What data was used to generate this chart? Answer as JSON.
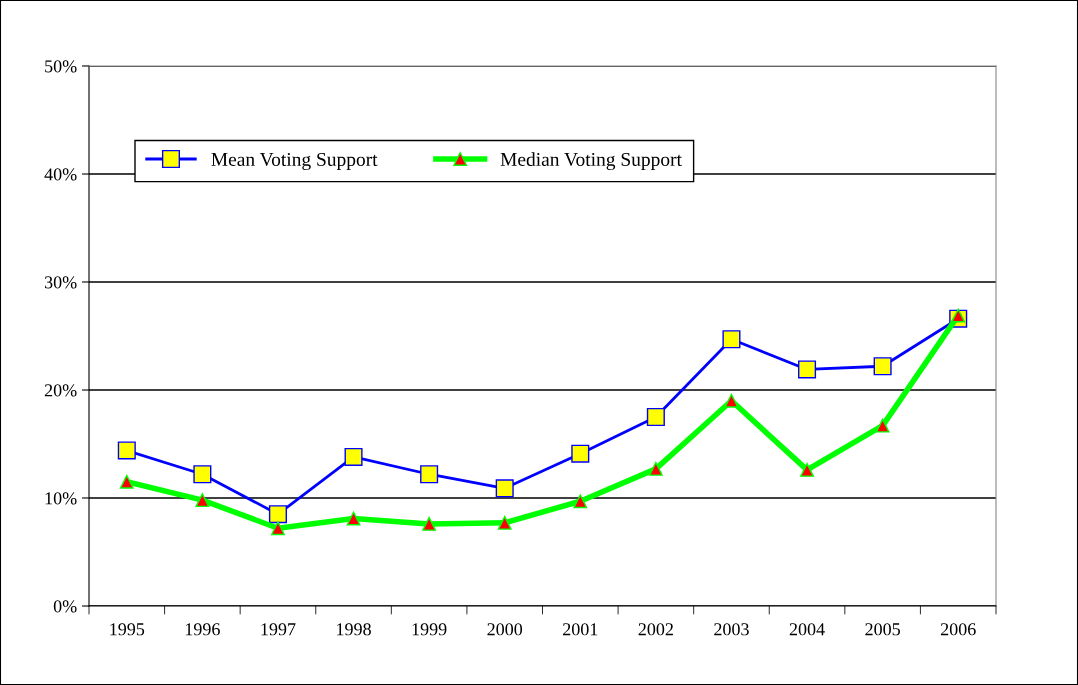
{
  "chart_data": {
    "type": "line",
    "categories": [
      "1995",
      "1996",
      "1997",
      "1998",
      "1999",
      "2000",
      "2001",
      "2002",
      "2003",
      "2004",
      "2005",
      "2006"
    ],
    "series": [
      {
        "name": "Mean Voting Support",
        "color": "#0000ff",
        "marker": "square",
        "values": [
          14.4,
          12.2,
          8.5,
          13.8,
          12.2,
          10.9,
          14.1,
          17.5,
          24.7,
          21.9,
          22.2,
          26.6
        ]
      },
      {
        "name": "Median Voting Support",
        "color": "#00ff00",
        "marker": "triangle",
        "values": [
          11.5,
          9.8,
          7.2,
          8.1,
          7.6,
          7.7,
          9.7,
          12.7,
          19.0,
          12.6,
          16.7,
          26.9
        ]
      }
    ],
    "ylim": [
      0,
      50
    ],
    "yticks": [
      {
        "value": 0,
        "label": "0%"
      },
      {
        "value": 10,
        "label": "10%"
      },
      {
        "value": 20,
        "label": "20%"
      },
      {
        "value": 30,
        "label": "30%"
      },
      {
        "value": 40,
        "label": "40%"
      },
      {
        "value": 50,
        "label": "50%"
      }
    ],
    "grid": "y",
    "legend": "top left",
    "line_style": "solid"
  }
}
